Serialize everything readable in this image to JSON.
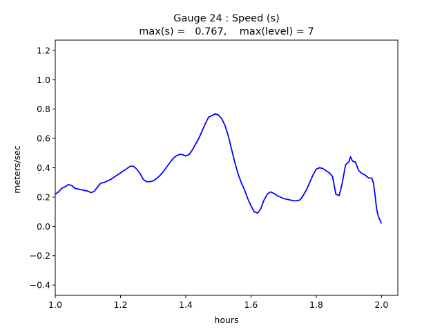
{
  "chart_data": {
    "type": "line",
    "title": "Gauge 24 : Speed (s)",
    "subtitle": "max(s) =   0.767,    max(level) = 7",
    "xlabel": "hours",
    "ylabel": "meters/sec",
    "xlim": [
      1.0,
      2.05
    ],
    "ylim": [
      -0.47,
      1.27
    ],
    "x_ticks": [
      1.0,
      1.2,
      1.4,
      1.6,
      1.8,
      2.0
    ],
    "x_tick_labels": [
      "1.0",
      "1.2",
      "1.4",
      "1.6",
      "1.8",
      "2.0"
    ],
    "y_ticks": [
      -0.4,
      -0.2,
      0.0,
      0.2,
      0.4,
      0.6,
      0.8,
      1.0,
      1.2
    ],
    "y_tick_labels": [
      "−0.4",
      "−0.2",
      "0.0",
      "0.2",
      "0.4",
      "0.6",
      "0.8",
      "1.0",
      "1.2"
    ],
    "grid": false,
    "series": [
      {
        "color": "#0000ff",
        "x": [
          1.0,
          1.01,
          1.02,
          1.03,
          1.04,
          1.05,
          1.06,
          1.07,
          1.08,
          1.09,
          1.1,
          1.11,
          1.12,
          1.13,
          1.14,
          1.15,
          1.16,
          1.17,
          1.18,
          1.19,
          1.2,
          1.21,
          1.22,
          1.23,
          1.24,
          1.25,
          1.26,
          1.27,
          1.28,
          1.29,
          1.3,
          1.31,
          1.32,
          1.33,
          1.34,
          1.35,
          1.36,
          1.37,
          1.38,
          1.39,
          1.4,
          1.41,
          1.42,
          1.43,
          1.44,
          1.45,
          1.46,
          1.47,
          1.48,
          1.49,
          1.5,
          1.51,
          1.52,
          1.53,
          1.54,
          1.55,
          1.56,
          1.57,
          1.58,
          1.59,
          1.6,
          1.61,
          1.62,
          1.63,
          1.64,
          1.65,
          1.66,
          1.67,
          1.68,
          1.69,
          1.7,
          1.71,
          1.72,
          1.73,
          1.74,
          1.75,
          1.76,
          1.77,
          1.78,
          1.79,
          1.8,
          1.81,
          1.82,
          1.83,
          1.84,
          1.85,
          1.86,
          1.87,
          1.875,
          1.88,
          1.89,
          1.9,
          1.905,
          1.91,
          1.915,
          1.92,
          1.925,
          1.93,
          1.94,
          1.95,
          1.96,
          1.97,
          1.975,
          1.98,
          1.985,
          1.99,
          2.0
        ],
        "y": [
          0.22,
          0.235,
          0.26,
          0.27,
          0.285,
          0.28,
          0.26,
          0.255,
          0.25,
          0.245,
          0.24,
          0.23,
          0.24,
          0.27,
          0.295,
          0.3,
          0.31,
          0.32,
          0.335,
          0.35,
          0.365,
          0.38,
          0.395,
          0.41,
          0.41,
          0.39,
          0.36,
          0.32,
          0.305,
          0.305,
          0.31,
          0.325,
          0.345,
          0.37,
          0.4,
          0.43,
          0.46,
          0.48,
          0.49,
          0.49,
          0.48,
          0.49,
          0.52,
          0.56,
          0.6,
          0.65,
          0.7,
          0.745,
          0.755,
          0.767,
          0.76,
          0.735,
          0.69,
          0.62,
          0.53,
          0.44,
          0.36,
          0.3,
          0.25,
          0.19,
          0.14,
          0.1,
          0.09,
          0.12,
          0.18,
          0.22,
          0.235,
          0.225,
          0.21,
          0.2,
          0.19,
          0.185,
          0.18,
          0.175,
          0.175,
          0.18,
          0.21,
          0.25,
          0.3,
          0.35,
          0.39,
          0.4,
          0.395,
          0.38,
          0.365,
          0.34,
          0.22,
          0.21,
          0.25,
          0.3,
          0.42,
          0.44,
          0.475,
          0.45,
          0.44,
          0.44,
          0.41,
          0.38,
          0.36,
          0.35,
          0.33,
          0.33,
          0.3,
          0.22,
          0.12,
          0.07,
          0.02
        ]
      }
    ]
  }
}
